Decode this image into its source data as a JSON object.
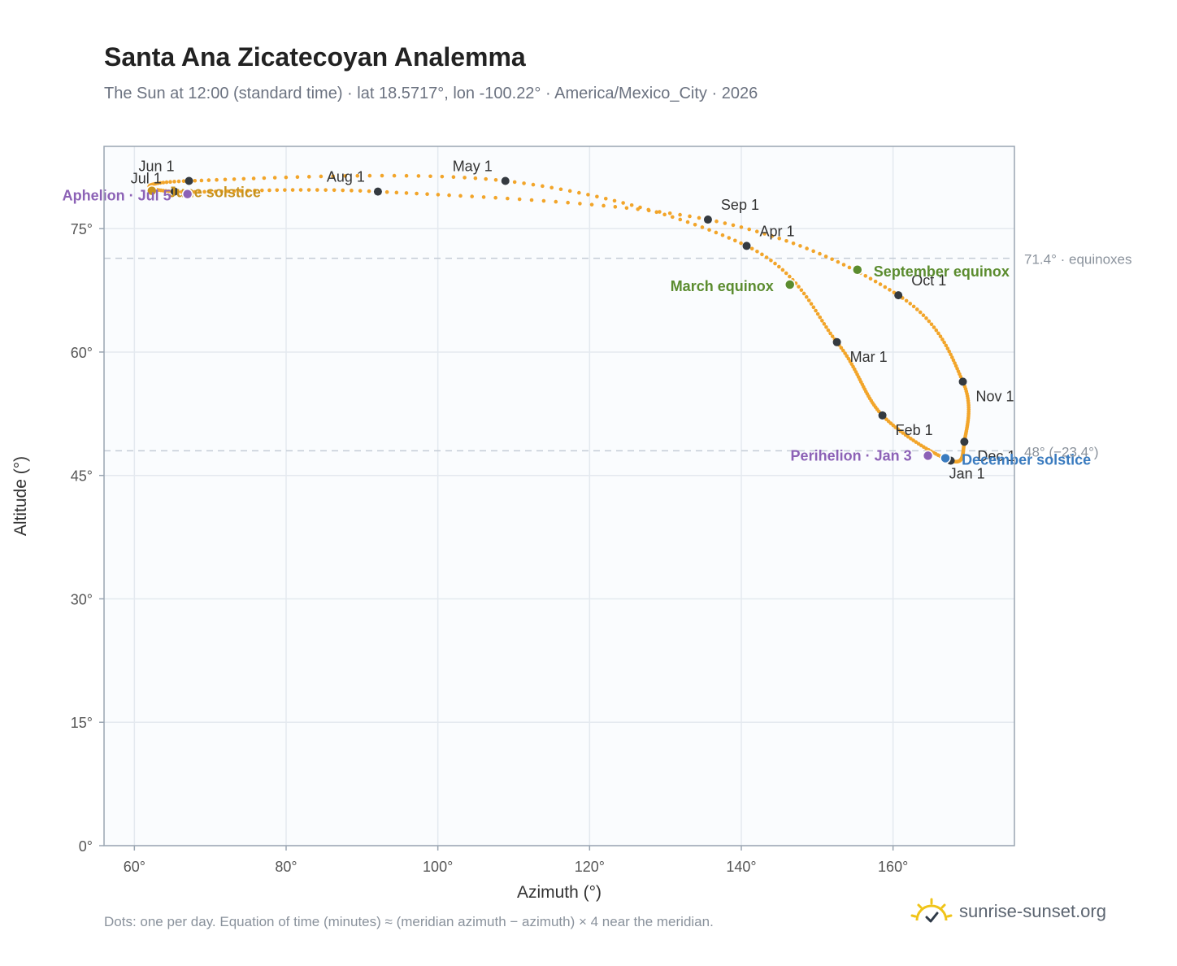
{
  "title": "Santa Ana Zicatecoyan Analemma",
  "subtitle": "The Sun at 12:00 (standard time) · lat 18.5717°, lon -100.22° · America/Mexico_City · 2026",
  "footnote": "Dots: one per day. Equation of time (minutes) ≈ (meridian azimuth − azimuth) × 4 near the meridian.",
  "brand": {
    "text": "sunrise-sunset.org",
    "icon": "sun-check-icon"
  },
  "colors": {
    "curve": "#f2a52a",
    "month_marker": "#343a40",
    "equinox": "#5b8c2f",
    "december_solstice": "#3a7bbf",
    "june_solstice": "#c8921d",
    "apsis": "#8c62b6",
    "reference_line": "#c4ccd6",
    "plot_bg": "#fafcfe",
    "plot_border": "#9aa5b2"
  },
  "chart_data": {
    "type": "scatter",
    "xlabel": "Azimuth (°)",
    "ylabel": "Altitude (°)",
    "xlim": [
      56,
      176
    ],
    "ylim": [
      0,
      85
    ],
    "x_ticks": [
      60,
      80,
      100,
      120,
      140,
      160
    ],
    "y_ticks": [
      0,
      15,
      30,
      45,
      60,
      75
    ],
    "x_tick_labels": [
      "60°",
      "80°",
      "100°",
      "120°",
      "140°",
      "160°"
    ],
    "y_tick_labels": [
      "0°",
      "15°",
      "30°",
      "45°",
      "60°",
      "75°"
    ],
    "grid": true,
    "reference_lines": [
      {
        "y": 71.4,
        "label": "71.4° · equinoxes"
      },
      {
        "y": 48,
        "label": "48° (−23.4°)"
      }
    ],
    "month_points": [
      {
        "label": "Jan 1",
        "az": 167.6,
        "alt": 46.8
      },
      {
        "label": "Feb 1",
        "az": 158.6,
        "alt": 52.3
      },
      {
        "label": "Mar 1",
        "az": 152.6,
        "alt": 61.2
      },
      {
        "label": "Apr 1",
        "az": 140.7,
        "alt": 72.9
      },
      {
        "label": "May 1",
        "az": 108.9,
        "alt": 80.8
      },
      {
        "label": "Jun 1",
        "az": 67.2,
        "alt": 80.8
      },
      {
        "label": "Jul 1",
        "az": 65.3,
        "alt": 79.5
      },
      {
        "label": "Aug 1",
        "az": 92.1,
        "alt": 79.5
      },
      {
        "label": "Sep 1",
        "az": 135.6,
        "alt": 76.1
      },
      {
        "label": "Oct 1",
        "az": 160.7,
        "alt": 66.9
      },
      {
        "label": "Nov 1",
        "az": 169.2,
        "alt": 56.4
      },
      {
        "label": "Dec 1",
        "az": 169.4,
        "alt": 49.1
      }
    ],
    "events": [
      {
        "label": "March equinox",
        "az": 146.4,
        "alt": 68.2,
        "kind": "equinox"
      },
      {
        "label": "September equinox",
        "az": 155.3,
        "alt": 70.0,
        "kind": "equinox"
      },
      {
        "label": "June solstice",
        "az": 62.3,
        "alt": 79.6,
        "kind": "june_solstice"
      },
      {
        "label": "December solstice",
        "az": 166.9,
        "alt": 47.1,
        "kind": "december_solstice"
      },
      {
        "label": "Aphelion · Jul 5",
        "az": 67.0,
        "alt": 79.2,
        "kind": "apsis"
      },
      {
        "label": "Perihelion · Jan 3",
        "az": 164.6,
        "alt": 47.4,
        "kind": "apsis"
      }
    ]
  }
}
